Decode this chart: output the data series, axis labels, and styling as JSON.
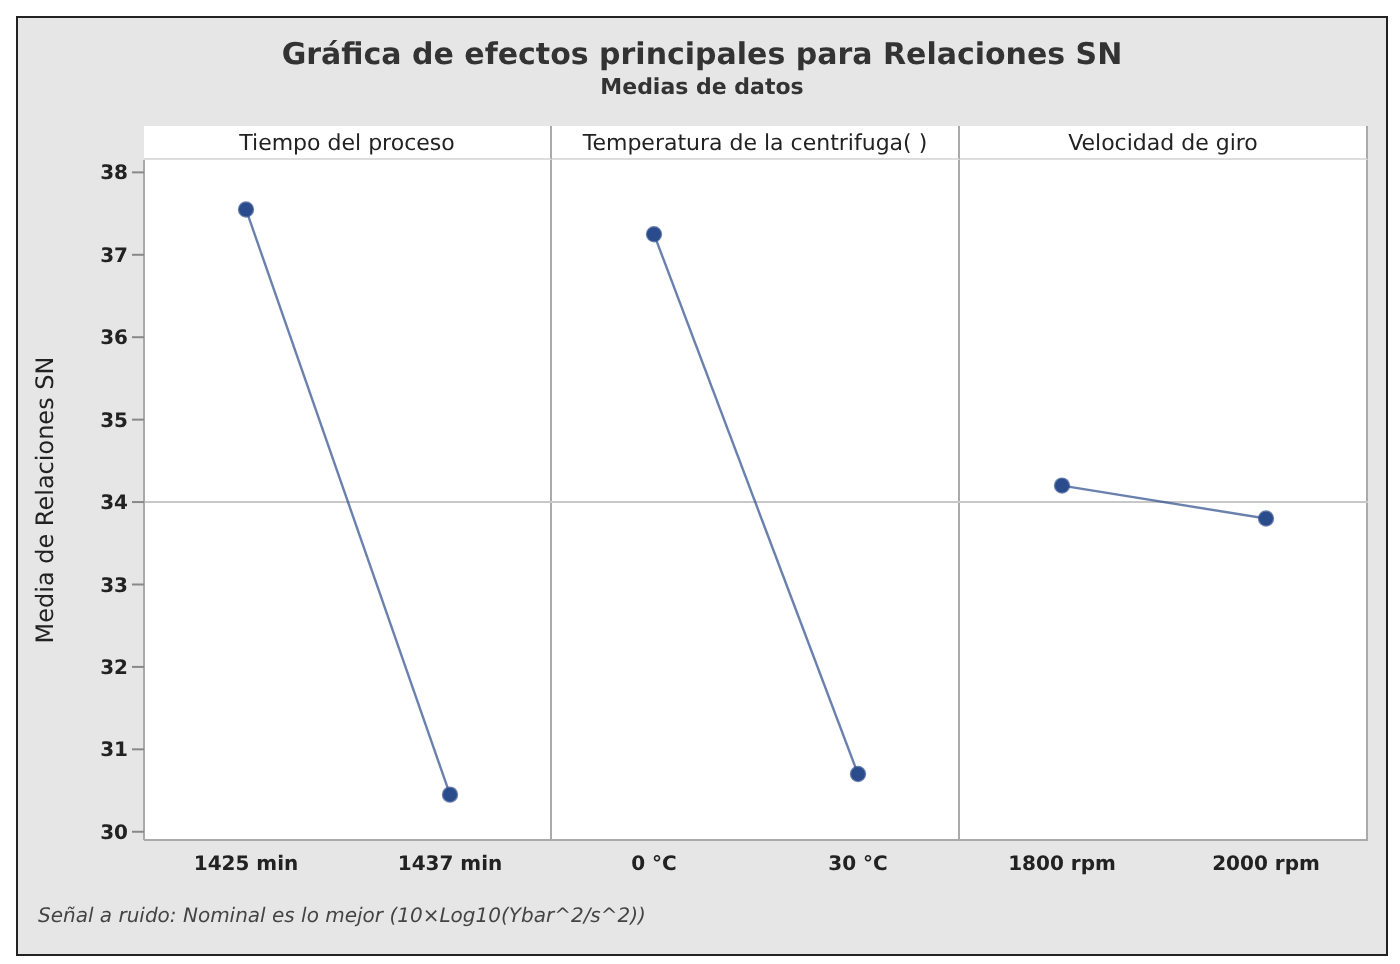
{
  "chart_data": [
    {
      "type": "line",
      "title": "Gráfica de efectos principales para Relaciones SN",
      "xlabel": "Tiempo del proceso",
      "ylabel": "Media de Relaciones SN",
      "categories": [
        "1425 min",
        "1437 min"
      ],
      "values": [
        37.55,
        30.45
      ],
      "color": "#2b4c8c",
      "marker": "circle",
      "ylim": [
        29.9,
        38.15
      ],
      "yticks": [
        30,
        31,
        32,
        33,
        34,
        35,
        36,
        37,
        38
      ],
      "ref_lines": [
        {
          "axis": "y",
          "value": 34,
          "color": "#c8c8c8"
        }
      ],
      "annotations": [
        "Señal a ruido: Nominal es lo mejor (10×Log10(Ybar^2/s^2))"
      ]
    },
    {
      "type": "line",
      "subtitle": "Medias de datos",
      "xlabel": "Temperatura de la centrifuga(  )",
      "categories": [
        "0 °C",
        "30 °C"
      ],
      "values": [
        37.25,
        30.7
      ],
      "color": "#2b4c8c",
      "marker": "circle",
      "ylim": [
        29.9,
        38.15
      ],
      "yticks": [
        30,
        31,
        32,
        33,
        34,
        35,
        36,
        37,
        38
      ],
      "tick_labels": "x",
      "ref_lines": [
        {
          "axis": "y",
          "value": 34,
          "color": "#c8c8c8"
        }
      ]
    },
    {
      "type": "line",
      "xlabel": "Velocidad de giro",
      "categories": [
        "1800 rpm",
        "2000 rpm"
      ],
      "values": [
        34.2,
        33.8
      ],
      "color": "#2b4c8c",
      "marker": "circle",
      "ylim": [
        29.9,
        38.15
      ],
      "yticks": [
        30,
        31,
        32,
        33,
        34,
        35,
        36,
        37,
        38
      ],
      "tick_labels": "x",
      "ref_lines": [
        {
          "axis": "y",
          "value": 34,
          "color": "#c8c8c8"
        }
      ]
    }
  ]
}
